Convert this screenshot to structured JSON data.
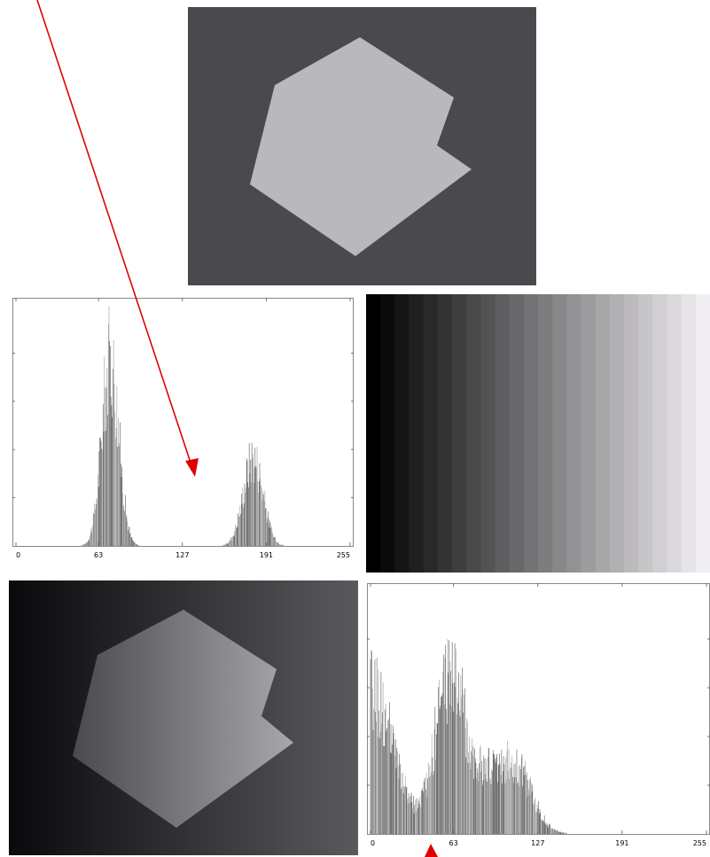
{
  "images": {
    "top": {
      "background": "#4a4a4e",
      "shape": "#b9b9bc"
    },
    "bottom": {
      "background_left": "#0a0a0c",
      "background_right": "#5a5a5e",
      "shape_left": "#4a4a4e",
      "shape_right": "#a8a8ab"
    },
    "gradient": {
      "from": "#000000",
      "to": "#f0eef2"
    }
  },
  "annotation_color": "#e00000",
  "chart_data": [
    {
      "type": "bar",
      "title": "",
      "xlabel": "",
      "ylabel": "",
      "xlim": [
        0,
        255
      ],
      "ylim": [
        0,
        1
      ],
      "x_ticks": [
        "0",
        "63",
        "127",
        "191",
        "255"
      ],
      "grid": false,
      "series": [
        {
          "peaks": [
            {
              "center": 72,
              "sigma": 6.5,
              "height": 0.97
            },
            {
              "center": 181,
              "sigma": 7.5,
              "height": 0.46
            }
          ]
        }
      ]
    },
    {
      "type": "bar",
      "title": "",
      "xlabel": "",
      "ylabel": "",
      "xlim": [
        0,
        255
      ],
      "ylim": [
        0,
        1
      ],
      "x_ticks": [
        "0",
        "63",
        "127",
        "191",
        "255"
      ],
      "grid": false,
      "series": [
        {
          "peaks": [
            {
              "center": 0,
              "sigma": 17,
              "height": 0.74
            },
            {
              "center": 60,
              "sigma": 11,
              "height": 0.78
            },
            {
              "center": 95,
              "sigma": 18,
              "height": 0.33
            },
            {
              "center": 115,
              "sigma": 10,
              "height": 0.14
            }
          ]
        }
      ]
    }
  ]
}
